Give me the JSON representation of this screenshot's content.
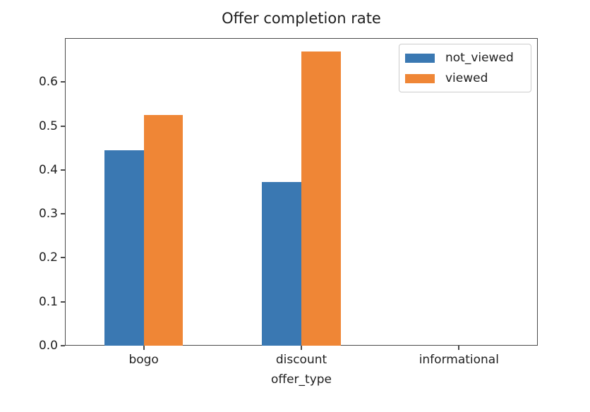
{
  "chart_data": {
    "type": "bar",
    "title": "Offer completion rate",
    "xlabel": "offer_type",
    "ylabel": "",
    "categories": [
      "bogo",
      "discount",
      "informational"
    ],
    "series": [
      {
        "name": "not_viewed",
        "color": "#3a78b2",
        "values": [
          0.445,
          0.373,
          0
        ]
      },
      {
        "name": "viewed",
        "color": "#ef8636",
        "values": [
          0.525,
          0.67,
          0
        ]
      }
    ],
    "ylim": [
      0,
      0.7
    ],
    "yticks": [
      0.0,
      0.1,
      0.2,
      0.3,
      0.4,
      0.5,
      0.6
    ],
    "grid": false,
    "legend_position": "upper right",
    "bar_group_width_fraction": 0.5,
    "axis_color": "#4a4a4a",
    "background_color": "#ffffff"
  }
}
